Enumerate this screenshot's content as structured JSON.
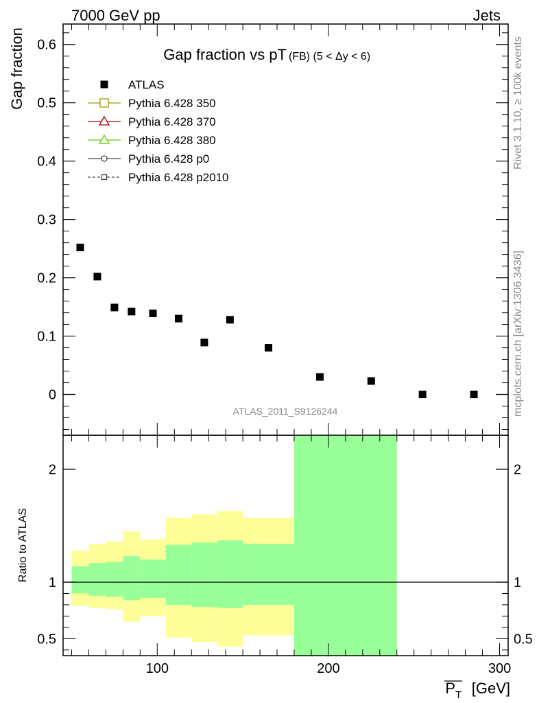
{
  "header": {
    "left": "7000 GeV pp",
    "right": "Jets"
  },
  "side": {
    "rivet": "Rivet 3.1.10, ≥ 100k events",
    "mcplots": "mcplots.cern.ch [arXiv:1306.3436]"
  },
  "watermark": "ATLAS_2011_S9126244",
  "colors": {
    "data": "#000000",
    "band_outer": "#ffff99",
    "band_inner": "#99ff99",
    "p350": "#999900",
    "p370": "#990000",
    "p380": "#66cc00",
    "p0": "#444444",
    "p2010": "#444444"
  },
  "chart_data": [
    {
      "type": "scatter",
      "title": "Gap fraction vs pT",
      "title_suffix": "(FB) (5 < Δy < 6)",
      "ylabel": "Gap fraction",
      "xlim": [
        45,
        305
      ],
      "ylim": [
        -0.07,
        0.635
      ],
      "yticks": [
        0,
        0.1,
        0.2,
        0.3,
        0.4,
        0.5,
        0.6
      ],
      "yticklabels": [
        "0",
        "0.1",
        "0.2",
        "0.3",
        "0.4",
        "0.5",
        "0.6"
      ],
      "legend_position": "top-left",
      "legend": [
        {
          "label": "ATLAS",
          "marker": "filled-square",
          "color": "#000000",
          "line": "none"
        },
        {
          "label": "Pythia 6.428 350",
          "marker": "open-square",
          "color": "#999900",
          "line": "solid"
        },
        {
          "label": "Pythia 6.428 370",
          "marker": "open-triangle",
          "color": "#990000",
          "line": "solid"
        },
        {
          "label": "Pythia 6.428 380",
          "marker": "open-triangle",
          "color": "#66cc00",
          "line": "solid"
        },
        {
          "label": "Pythia 6.428 p0",
          "marker": "open-circle",
          "color": "#444444",
          "line": "solid"
        },
        {
          "label": "Pythia 6.428 p2010",
          "marker": "open-square",
          "color": "#444444",
          "line": "dashed"
        }
      ],
      "series": [
        {
          "name": "ATLAS",
          "x": [
            55,
            65,
            75,
            85,
            97.5,
            112.5,
            127.5,
            142.5,
            165,
            195,
            225,
            255,
            285
          ],
          "y": [
            0.252,
            0.202,
            0.149,
            0.142,
            0.139,
            0.13,
            0.089,
            0.128,
            0.08,
            0.03,
            0.023,
            0.0,
            0.0
          ]
        }
      ]
    },
    {
      "type": "area",
      "ylabel": "Ratio to ATLAS",
      "xlabel": "P_T [GeV]",
      "xlim": [
        45,
        305
      ],
      "ylim": [
        0.35,
        2.3
      ],
      "xticks": [
        100,
        200,
        300
      ],
      "xticklabels": [
        "100",
        "200",
        "300"
      ],
      "yticks": [
        0.5,
        1,
        2
      ],
      "yticklabels": [
        "0.5",
        "1",
        "2"
      ],
      "reference_line": 1,
      "bins": [
        {
          "x0": 50,
          "x1": 60,
          "outer": [
            0.79,
            1.28
          ],
          "inner": [
            0.9,
            1.14
          ]
        },
        {
          "x0": 60,
          "x1": 70,
          "outer": [
            0.77,
            1.34
          ],
          "inner": [
            0.88,
            1.17
          ]
        },
        {
          "x0": 70,
          "x1": 80,
          "outer": [
            0.76,
            1.36
          ],
          "inner": [
            0.87,
            1.18
          ]
        },
        {
          "x0": 80,
          "x1": 90,
          "outer": [
            0.65,
            1.45
          ],
          "inner": [
            0.84,
            1.23
          ]
        },
        {
          "x0": 90,
          "x1": 105,
          "outer": [
            0.7,
            1.38
          ],
          "inner": [
            0.86,
            1.2
          ]
        },
        {
          "x0": 105,
          "x1": 120,
          "outer": [
            0.51,
            1.57
          ],
          "inner": [
            0.8,
            1.33
          ]
        },
        {
          "x0": 120,
          "x1": 135,
          "outer": [
            0.47,
            1.6
          ],
          "inner": [
            0.78,
            1.35
          ]
        },
        {
          "x0": 135,
          "x1": 150,
          "outer": [
            0.43,
            1.63
          ],
          "inner": [
            0.77,
            1.37
          ]
        },
        {
          "x0": 150,
          "x1": 180,
          "outer": [
            0.53,
            1.57
          ],
          "inner": [
            0.8,
            1.34
          ]
        },
        {
          "x0": 180,
          "x1": 240,
          "outer": [
            0.35,
            2.3
          ],
          "inner": [
            0.35,
            2.3
          ]
        }
      ]
    }
  ]
}
